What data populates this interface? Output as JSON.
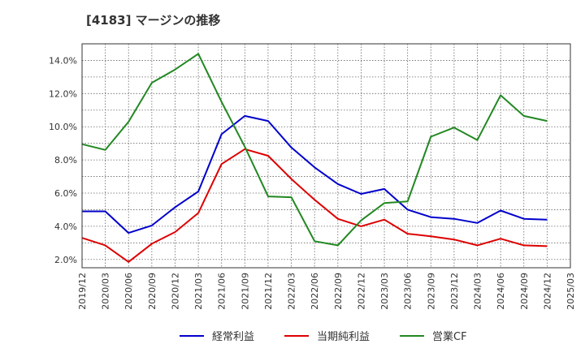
{
  "chart_data": {
    "type": "line",
    "title": "[4183]  マージンの推移",
    "x": [
      "2019/12",
      "2020/03",
      "2020/06",
      "2020/09",
      "2020/12",
      "2021/03",
      "2021/06",
      "2021/09",
      "2021/12",
      "2022/03",
      "2022/06",
      "2022/09",
      "2022/12",
      "2023/03",
      "2023/06",
      "2023/09",
      "2023/12",
      "2024/03",
      "2024/06",
      "2024/09",
      "2024/12"
    ],
    "x_ticks": [
      "2019/12",
      "2020/03",
      "2020/06",
      "2020/09",
      "2020/12",
      "2021/03",
      "2021/06",
      "2021/09",
      "2021/12",
      "2022/03",
      "2022/06",
      "2022/09",
      "2022/12",
      "2023/03",
      "2023/06",
      "2023/09",
      "2023/12",
      "2024/03",
      "2024/06",
      "2024/09",
      "2024/12",
      "2025/03"
    ],
    "y_ticks": [
      "2.0%",
      "4.0%",
      "6.0%",
      "8.0%",
      "10.0%",
      "12.0%",
      "14.0%"
    ],
    "ylim": [
      1.5,
      15.0
    ],
    "grid": true,
    "legend_position": "bottom",
    "series": [
      {
        "name": "経常利益",
        "color": "#0000cc",
        "values": [
          4.9,
          4.9,
          3.6,
          4.05,
          5.15,
          6.1,
          9.55,
          10.65,
          10.35,
          8.75,
          7.55,
          6.55,
          5.95,
          6.25,
          5.0,
          4.55,
          4.45,
          4.2,
          4.95,
          4.45,
          4.4
        ]
      },
      {
        "name": "当期純利益",
        "color": "#dd0000",
        "values": [
          3.3,
          2.85,
          1.85,
          2.95,
          3.65,
          4.8,
          7.75,
          8.65,
          8.25,
          6.85,
          5.6,
          4.45,
          4.0,
          4.4,
          3.55,
          3.4,
          3.2,
          2.85,
          3.25,
          2.85,
          2.8
        ]
      },
      {
        "name": "営業CF",
        "color": "#228822",
        "values": [
          8.95,
          8.6,
          10.3,
          12.65,
          13.45,
          14.4,
          11.5,
          8.8,
          5.8,
          5.75,
          3.1,
          2.85,
          4.35,
          5.4,
          5.5,
          9.4,
          9.95,
          9.2,
          11.9,
          10.65,
          10.35
        ]
      }
    ]
  }
}
